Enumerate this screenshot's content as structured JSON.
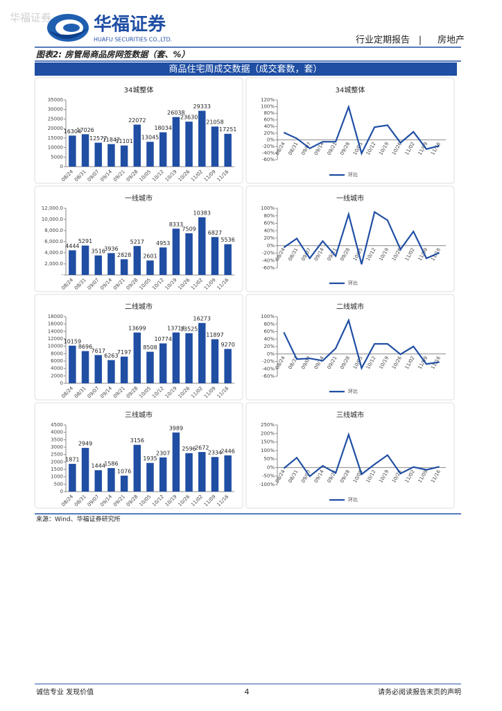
{
  "header": {
    "watermark": "华福证券",
    "logo": "华福证券",
    "logo_en": "HUAFU SECURITIES CO.,LTD.",
    "report_type": "行业定期报告",
    "divider": "|",
    "sector": "房地产"
  },
  "figure": {
    "title": "图表2: 房管局商品房网签数据（套、%）",
    "banner": "商品住宅周成交数据（成交套数，套）",
    "source": "来源：Wind、华福证券研究所"
  },
  "footer": {
    "left": "诚信专业  发现价值",
    "page": "4",
    "right": "请务必阅读报告末页的声明"
  },
  "chart_data": [
    {
      "type": "bar",
      "title": "34城整体",
      "categories": [
        "08/24",
        "08/31",
        "09/07",
        "09/14",
        "09/21",
        "09/28",
        "10/05",
        "10/12",
        "10/19",
        "10/26",
        "11/02",
        "11/09",
        "11/16"
      ],
      "values": [
        16304,
        17026,
        12577,
        11847,
        11101,
        22072,
        13045,
        18034,
        26038,
        23630,
        29333,
        21058,
        17251
      ],
      "color": "#1f4ea3",
      "ylim": [
        0,
        35000
      ],
      "yticks": [
        0,
        5000,
        10000,
        15000,
        20000,
        25000,
        30000,
        35000
      ]
    },
    {
      "type": "line",
      "title": "34城整体",
      "categories": [
        "08/24",
        "08/31",
        "09/07",
        "09/14",
        "09/21",
        "09/28",
        "10/05",
        "10/12",
        "10/19",
        "10/26",
        "11/02",
        "11/09",
        "11/16"
      ],
      "series": [
        {
          "name": "环比",
          "color": "#1f4ea3",
          "values": [
            22,
            4,
            -26,
            -6,
            -6,
            99,
            -41,
            38,
            44,
            -9,
            24,
            -28,
            -18
          ]
        }
      ],
      "ylim": [
        -60,
        120
      ],
      "yticks": [
        {
          "value": -60,
          "label": "-60%"
        },
        {
          "value": -40,
          "label": "-40%"
        },
        {
          "value": -20,
          "label": "-20%"
        },
        {
          "value": 0,
          "label": "0%"
        },
        {
          "value": 20,
          "label": "20%"
        },
        {
          "value": 40,
          "label": "40%"
        },
        {
          "value": 60,
          "label": "60%"
        },
        {
          "value": 80,
          "label": "80%"
        },
        {
          "value": 100,
          "label": "100%"
        },
        {
          "value": 120,
          "label": "120%"
        }
      ],
      "legend": "bottom"
    },
    {
      "type": "bar",
      "title": "一线城市",
      "categories": [
        "08/24",
        "08/31",
        "09/07",
        "09/14",
        "09/21",
        "09/28",
        "10/05",
        "10/12",
        "10/19",
        "10/26",
        "11/02",
        "11/09",
        "11/16"
      ],
      "values": [
        4444,
        5291,
        3516,
        3936,
        2828,
        5217,
        2601,
        4953,
        8333,
        7509,
        10383,
        6827,
        5536
      ],
      "color": "#1f4ea3",
      "ylim": [
        0,
        12000
      ],
      "yticks": [
        {
          "value": 0,
          "label": "-"
        },
        {
          "value": 2000,
          "label": "2,000.0"
        },
        {
          "value": 4000,
          "label": "4,000.0"
        },
        {
          "value": 6000,
          "label": "6,000.0"
        },
        {
          "value": 8000,
          "label": "8,000.0"
        },
        {
          "value": 10000,
          "label": "10,000.0"
        },
        {
          "value": 12000,
          "label": "12,000.0"
        }
      ]
    },
    {
      "type": "line",
      "title": "一线城市",
      "categories": [
        "08/24",
        "08/31",
        "09/07",
        "09/14",
        "09/21",
        "09/28",
        "10/05",
        "10/12",
        "10/19",
        "10/26",
        "11/02",
        "11/09",
        "11/16"
      ],
      "series": [
        {
          "name": "环比",
          "color": "#1f4ea3",
          "values": [
            -5,
            19,
            -34,
            12,
            -28,
            84,
            -50,
            90,
            68,
            -10,
            38,
            -34,
            -19
          ]
        }
      ],
      "ylim": [
        -60,
        100
      ],
      "yticks": [
        {
          "value": -60,
          "label": "-60%"
        },
        {
          "value": -40,
          "label": "-40%"
        },
        {
          "value": -20,
          "label": "-20%"
        },
        {
          "value": 0,
          "label": "0%"
        },
        {
          "value": 20,
          "label": "20%"
        },
        {
          "value": 40,
          "label": "40%"
        },
        {
          "value": 60,
          "label": "60%"
        },
        {
          "value": 80,
          "label": "80%"
        },
        {
          "value": 100,
          "label": "100%"
        }
      ],
      "legend": "bottom"
    },
    {
      "type": "bar",
      "title": "二线城市",
      "categories": [
        "08/24",
        "08/31",
        "09/07",
        "09/14",
        "09/21",
        "09/28",
        "10/05",
        "10/12",
        "10/19",
        "10/26",
        "11/02",
        "11/09",
        "11/16"
      ],
      "values": [
        10159,
        8696,
        7617,
        6263,
        7197,
        13699,
        8508,
        10774,
        13714,
        13525,
        16273,
        11897,
        9270
      ],
      "color": "#1f4ea3",
      "ylim": [
        0,
        18000
      ],
      "yticks": [
        0,
        2000,
        4000,
        6000,
        8000,
        10000,
        12000,
        14000,
        16000,
        18000
      ]
    },
    {
      "type": "line",
      "title": "二线城市",
      "categories": [
        "08/24",
        "08/31",
        "09/07",
        "09/14",
        "09/21",
        "09/28",
        "10/05",
        "10/12",
        "10/19",
        "10/26",
        "11/02",
        "11/09",
        "11/16"
      ],
      "series": [
        {
          "name": "环比",
          "color": "#1f4ea3",
          "values": [
            58,
            -14,
            -12,
            -18,
            15,
            90,
            -38,
            27,
            27,
            -1,
            20,
            -27,
            -22
          ]
        }
      ],
      "ylim": [
        -60,
        100
      ],
      "yticks": [
        {
          "value": -60,
          "label": "-60%"
        },
        {
          "value": -40,
          "label": "-40%"
        },
        {
          "value": -20,
          "label": "-20%"
        },
        {
          "value": 0,
          "label": "0%"
        },
        {
          "value": 20,
          "label": "20%"
        },
        {
          "value": 40,
          "label": "40%"
        },
        {
          "value": 60,
          "label": "60%"
        },
        {
          "value": 80,
          "label": "80%"
        },
        {
          "value": 100,
          "label": "100%"
        }
      ],
      "legend": "bottom"
    },
    {
      "type": "bar",
      "title": "三线城市",
      "categories": [
        "08/24",
        "08/31",
        "09/07",
        "09/14",
        "09/21",
        "09/28",
        "10/05",
        "10/12",
        "10/19",
        "10/26",
        "11/02",
        "11/09",
        "11/16"
      ],
      "values": [
        1871,
        2949,
        1444,
        1586,
        1076,
        3156,
        1935,
        2307,
        3989,
        2596,
        2672,
        2334,
        2446
      ],
      "color": "#1f4ea3",
      "ylim": [
        0,
        4500
      ],
      "yticks": [
        0,
        500,
        1000,
        1500,
        2000,
        2500,
        3000,
        3500,
        4000,
        4500
      ]
    },
    {
      "type": "line",
      "title": "三线城市",
      "categories": [
        "08/24",
        "08/31",
        "09/07",
        "09/14",
        "09/21",
        "09/28",
        "10/05",
        "10/12",
        "10/19",
        "10/26",
        "11/02",
        "11/09",
        "11/16"
      ],
      "series": [
        {
          "name": "环比",
          "color": "#1f4ea3",
          "values": [
            -5,
            58,
            -51,
            10,
            -32,
            193,
            -39,
            19,
            73,
            -35,
            3,
            -13,
            5
          ]
        }
      ],
      "ylim": [
        -100,
        250
      ],
      "yticks": [
        {
          "value": -100,
          "label": "-100%"
        },
        {
          "value": -50,
          "label": "-50%"
        },
        {
          "value": 0,
          "label": "0%"
        },
        {
          "value": 50,
          "label": "50%"
        },
        {
          "value": 100,
          "label": "100%"
        },
        {
          "value": 150,
          "label": "150%"
        },
        {
          "value": 200,
          "label": "200%"
        },
        {
          "value": 250,
          "label": "250%"
        }
      ],
      "legend": "bottom"
    }
  ]
}
